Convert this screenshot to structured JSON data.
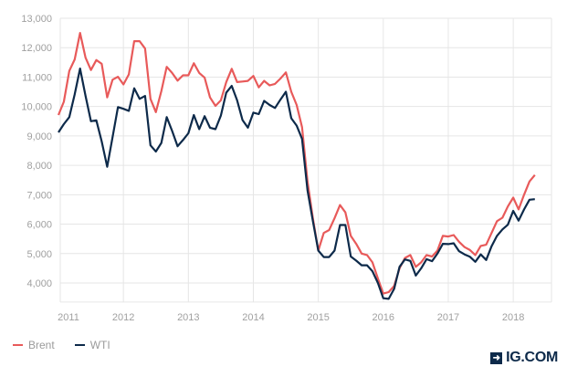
{
  "chart_data": {
    "type": "line",
    "title": "",
    "xlabel": "",
    "ylabel": "",
    "x_start": "2011-01",
    "x_frequency": "monthly",
    "ylim": [
      3350,
      13000
    ],
    "yticks": [
      4000,
      5000,
      6000,
      7000,
      8000,
      9000,
      10000,
      11000,
      12000,
      13000
    ],
    "ytick_labels": [
      "4,000",
      "5,000",
      "6,000",
      "7,000",
      "8,000",
      "9,000",
      "10,000",
      "11,000",
      "12,000",
      "13,000"
    ],
    "xtick_labels": [
      "2011",
      "2012",
      "2013",
      "2014",
      "2015",
      "2016",
      "2017",
      "2018"
    ],
    "grid": true,
    "legend_placement": "bottom-left",
    "series": [
      {
        "name": "Brent",
        "color": "#e85a5a",
        "values": [
          9710,
          10160,
          11210,
          11600,
          12500,
          11660,
          11240,
          11580,
          11450,
          10310,
          10910,
          11010,
          10750,
          11090,
          12220,
          12220,
          11970,
          10260,
          9810,
          10520,
          11350,
          11140,
          10880,
          11060,
          11060,
          11470,
          11140,
          10980,
          10310,
          10020,
          10210,
          10830,
          11280,
          10830,
          10850,
          10870,
          11040,
          10650,
          10870,
          10720,
          10770,
          10950,
          11160,
          10500,
          10050,
          9300,
          7450,
          6200,
          5100,
          5700,
          5800,
          6200,
          6650,
          6400,
          5600,
          5330,
          5000,
          4950,
          4700,
          4150,
          3640,
          3690,
          3900,
          4500,
          4850,
          4950,
          4550,
          4700,
          4950,
          4900,
          5100,
          5600,
          5580,
          5630,
          5400,
          5220,
          5120,
          4950,
          5260,
          5300,
          5700,
          6100,
          6220,
          6600,
          6900,
          6500,
          7000,
          7450,
          7670
        ]
      },
      {
        "name": "WTI",
        "color": "#0d2a4a",
        "values": [
          9120,
          9400,
          9640,
          10410,
          11290,
          10360,
          9500,
          9530,
          8810,
          7950,
          8960,
          9980,
          9920,
          9850,
          10620,
          10260,
          10360,
          8680,
          8470,
          8760,
          9640,
          9170,
          8650,
          8860,
          9090,
          9710,
          9230,
          9670,
          9280,
          9230,
          9690,
          10470,
          10700,
          10210,
          9540,
          9280,
          9790,
          9740,
          10190,
          10050,
          9950,
          10230,
          10500,
          9600,
          9350,
          8900,
          7150,
          6100,
          5100,
          4880,
          4880,
          5100,
          5970,
          5970,
          4900,
          4760,
          4600,
          4600,
          4400,
          4000,
          3480,
          3460,
          3800,
          4550,
          4800,
          4750,
          4250,
          4500,
          4810,
          4740,
          5000,
          5330,
          5320,
          5350,
          5080,
          4970,
          4890,
          4720,
          4970,
          4780,
          5250,
          5600,
          5820,
          5980,
          6450,
          6120,
          6500,
          6830,
          6850
        ]
      }
    ]
  },
  "legend": {
    "brent": "Brent",
    "wti": "WTI"
  },
  "logo": {
    "text": "IG.COM",
    "icon": "arrow-right-icon"
  }
}
